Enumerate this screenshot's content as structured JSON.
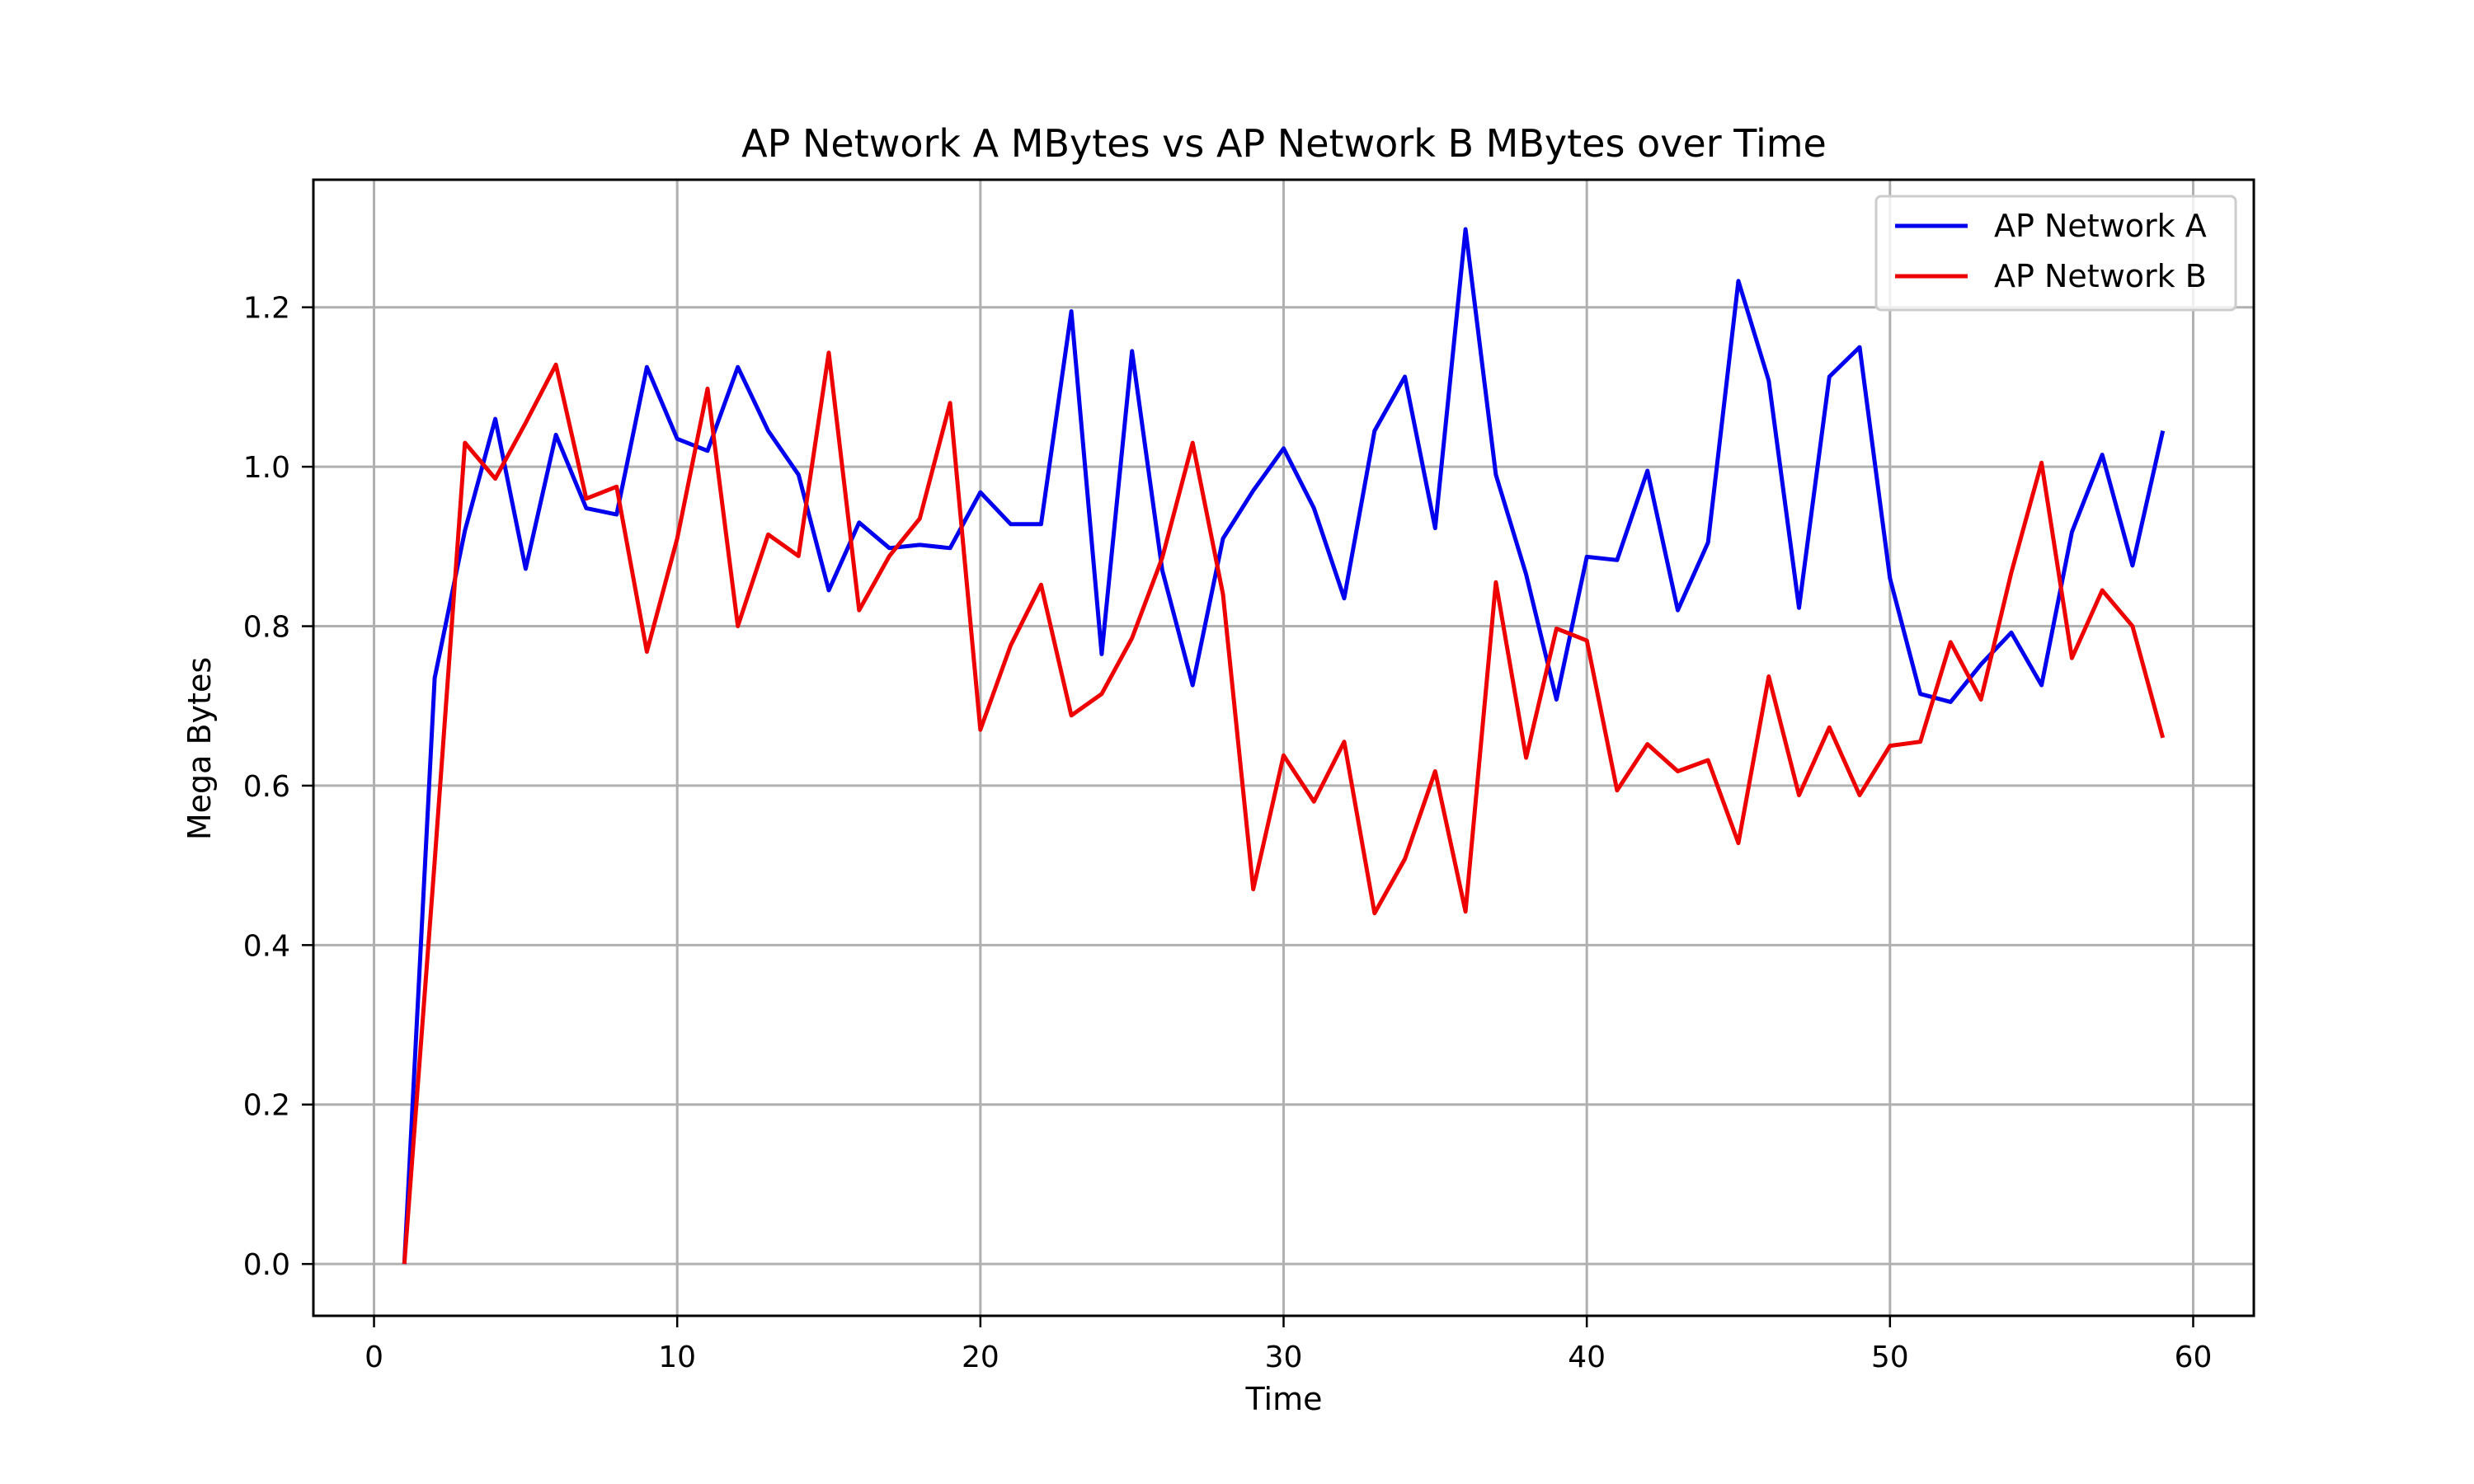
{
  "chart_data": {
    "type": "line",
    "title": "AP Network A MBytes vs AP Network B MBytes over Time",
    "xlabel": "Time",
    "ylabel": "Mega Bytes",
    "xlim": [
      -2,
      62
    ],
    "ylim": [
      -0.065,
      1.36
    ],
    "xticks": [
      0,
      10,
      20,
      30,
      40,
      50,
      60
    ],
    "xtick_labels": [
      "0",
      "10",
      "20",
      "30",
      "40",
      "50",
      "60"
    ],
    "yticks": [
      0.0,
      0.2,
      0.4,
      0.6,
      0.8,
      1.0,
      1.2
    ],
    "ytick_labels": [
      "0.0",
      "0.2",
      "0.4",
      "0.6",
      "0.8",
      "1.0",
      "1.2"
    ],
    "grid": true,
    "legend_position": "top-right",
    "x": [
      1,
      2,
      3,
      4,
      5,
      6,
      7,
      8,
      9,
      10,
      11,
      12,
      13,
      14,
      15,
      16,
      17,
      18,
      19,
      20,
      21,
      22,
      23,
      24,
      25,
      26,
      27,
      28,
      29,
      30,
      31,
      32,
      33,
      34,
      35,
      36,
      37,
      38,
      39,
      40,
      41,
      42,
      43,
      44,
      45,
      46,
      47,
      48,
      49,
      50,
      51,
      52,
      53,
      54,
      55,
      56,
      57,
      58,
      59
    ],
    "series": [
      {
        "name": "AP Network A",
        "color": "#0000ee",
        "values": [
          0.0,
          0.735,
          0.92,
          1.06,
          0.872,
          1.04,
          0.948,
          0.94,
          1.125,
          1.035,
          1.02,
          1.125,
          1.045,
          0.99,
          0.845,
          0.93,
          0.898,
          0.902,
          0.898,
          0.968,
          0.928,
          0.928,
          1.195,
          0.765,
          1.145,
          0.87,
          0.726,
          0.91,
          0.97,
          1.023,
          0.948,
          0.835,
          1.045,
          1.113,
          0.923,
          1.298,
          0.99,
          0.865,
          0.708,
          0.887,
          0.883,
          0.995,
          0.82,
          0.905,
          1.233,
          1.108,
          0.823,
          1.113,
          1.15,
          0.86,
          0.715,
          0.705,
          0.752,
          0.792,
          0.726,
          0.918,
          1.015,
          0.876,
          1.045
        ]
      },
      {
        "name": "AP Network B",
        "color": "#ee0000",
        "values": [
          0.0,
          0.505,
          1.03,
          0.985,
          1.055,
          1.128,
          0.96,
          0.975,
          0.768,
          0.91,
          1.098,
          0.8,
          0.915,
          0.888,
          1.143,
          0.82,
          0.888,
          0.935,
          1.08,
          0.67,
          0.776,
          0.852,
          0.688,
          0.715,
          0.785,
          0.886,
          1.03,
          0.84,
          0.47,
          0.638,
          0.58,
          0.655,
          0.44,
          0.508,
          0.618,
          0.442,
          0.855,
          0.635,
          0.797,
          0.782,
          0.594,
          0.652,
          0.618,
          0.632,
          0.528,
          0.737,
          0.588,
          0.673,
          0.588,
          0.65,
          0.655,
          0.78,
          0.708,
          0.867,
          1.005,
          0.76,
          0.845,
          0.8,
          0.66
        ]
      }
    ]
  }
}
